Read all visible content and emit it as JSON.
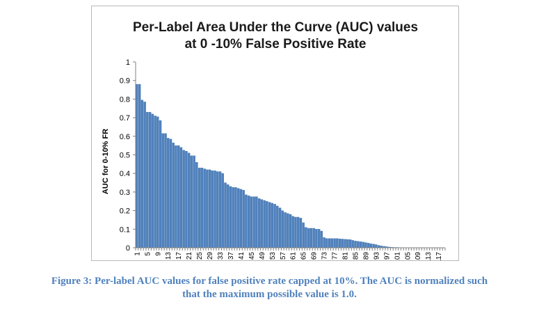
{
  "chart_data": {
    "type": "bar",
    "title_lines": [
      "Per-Label Area Under the Curve (AUC) values",
      "at 0 -10% False Positive Rate"
    ],
    "ylabel": "AUC for 0-10% FR",
    "xlabel": "",
    "ylim": [
      0,
      1
    ],
    "y_ticks": [
      "0",
      "0.1",
      "0.2",
      "0.3",
      "0.4",
      "0.5",
      "0.6",
      "0.7",
      "0.8",
      "0.9",
      "1"
    ],
    "x_tick_labels": [
      "1",
      "5",
      "9",
      "13",
      "17",
      "21",
      "25",
      "29",
      "33",
      "37",
      "41",
      "45",
      "49",
      "53",
      "57",
      "61",
      "65",
      "69",
      "73",
      "77",
      "81",
      "85",
      "89",
      "93",
      "97",
      "101",
      "105",
      "109",
      "113",
      "117"
    ],
    "categories_count": 119,
    "values": [
      0.88,
      0.88,
      0.795,
      0.785,
      0.73,
      0.73,
      0.72,
      0.71,
      0.705,
      0.685,
      0.615,
      0.615,
      0.59,
      0.585,
      0.565,
      0.55,
      0.55,
      0.54,
      0.525,
      0.52,
      0.51,
      0.495,
      0.495,
      0.46,
      0.43,
      0.43,
      0.425,
      0.42,
      0.42,
      0.415,
      0.415,
      0.41,
      0.41,
      0.4,
      0.35,
      0.34,
      0.33,
      0.325,
      0.325,
      0.32,
      0.315,
      0.31,
      0.285,
      0.28,
      0.275,
      0.275,
      0.275,
      0.265,
      0.26,
      0.255,
      0.25,
      0.245,
      0.24,
      0.235,
      0.225,
      0.215,
      0.2,
      0.19,
      0.185,
      0.18,
      0.17,
      0.165,
      0.165,
      0.16,
      0.135,
      0.11,
      0.105,
      0.105,
      0.105,
      0.1,
      0.1,
      0.09,
      0.055,
      0.05,
      0.05,
      0.05,
      0.05,
      0.05,
      0.048,
      0.047,
      0.046,
      0.045,
      0.044,
      0.04,
      0.037,
      0.035,
      0.033,
      0.031,
      0.028,
      0.025,
      0.022,
      0.02,
      0.017,
      0.013,
      0.01,
      0.008,
      0.006,
      0.004,
      0.003,
      0.002,
      0.002,
      0.0015,
      0.001,
      0.001,
      0.001,
      0.001,
      0.001,
      0.001,
      0.0008,
      0.0006,
      0.0005,
      0.0005,
      0.0004,
      0.0003,
      0.0002,
      0.0002,
      0.0001,
      0.0001,
      0.0001
    ],
    "grid": false,
    "legend": "none",
    "bar_color": "#4f81bd"
  },
  "caption": {
    "line1": "Figure 3: Per-label AUC values for false positive rate capped at 10%. The AUC is normalized such",
    "line2": "that the maximum possible value is 1.0."
  }
}
